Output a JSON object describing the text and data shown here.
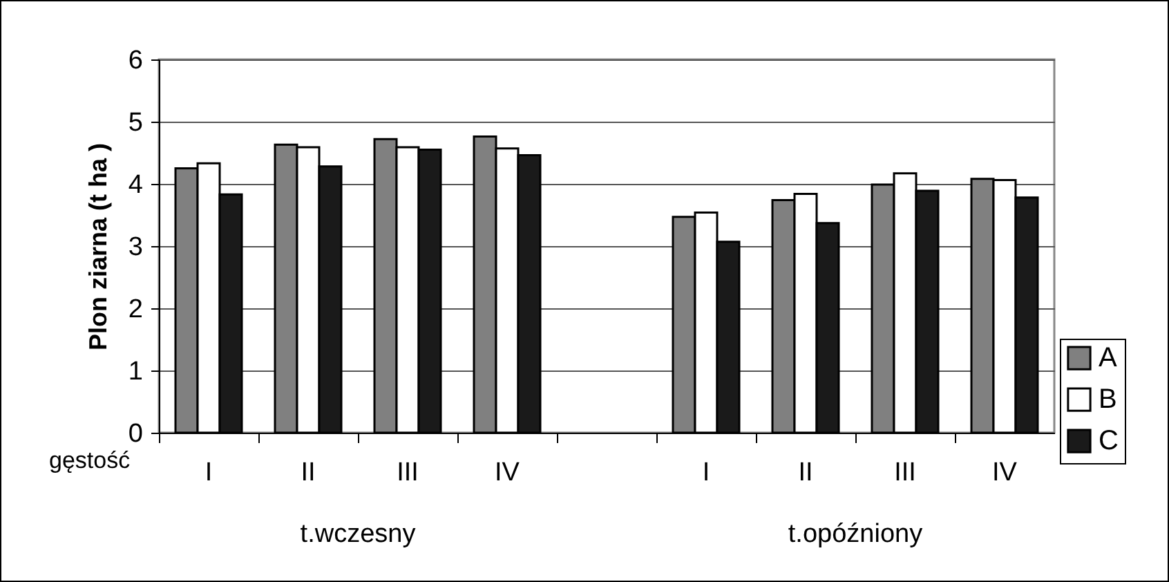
{
  "chart_data": {
    "type": "bar",
    "ylabel": "Plon ziarna (t ha )",
    "xlabel": "gęstość",
    "categories": [
      "I",
      "II",
      "III",
      "IV",
      null,
      "I",
      "II",
      "III",
      "IV"
    ],
    "series": [
      {
        "name": "A",
        "color": "#808080",
        "values": [
          4.25,
          4.63,
          4.72,
          4.76,
          null,
          3.47,
          3.74,
          3.99,
          4.08
        ]
      },
      {
        "name": "B",
        "color": "#ffffff",
        "values": [
          4.33,
          4.59,
          4.59,
          4.57,
          null,
          3.54,
          3.84,
          4.17,
          4.06
        ]
      },
      {
        "name": "C",
        "color": "#1a1a1a",
        "values": [
          3.83,
          4.28,
          4.55,
          4.46,
          null,
          3.07,
          3.37,
          3.89,
          3.78
        ]
      }
    ],
    "annotations": [
      "t.wczesny",
      "t.opóźniony"
    ],
    "ylim": [
      0,
      6
    ],
    "yticks": [
      0,
      1,
      2,
      3,
      4,
      5,
      6
    ],
    "grid": "y",
    "legend": "right"
  }
}
